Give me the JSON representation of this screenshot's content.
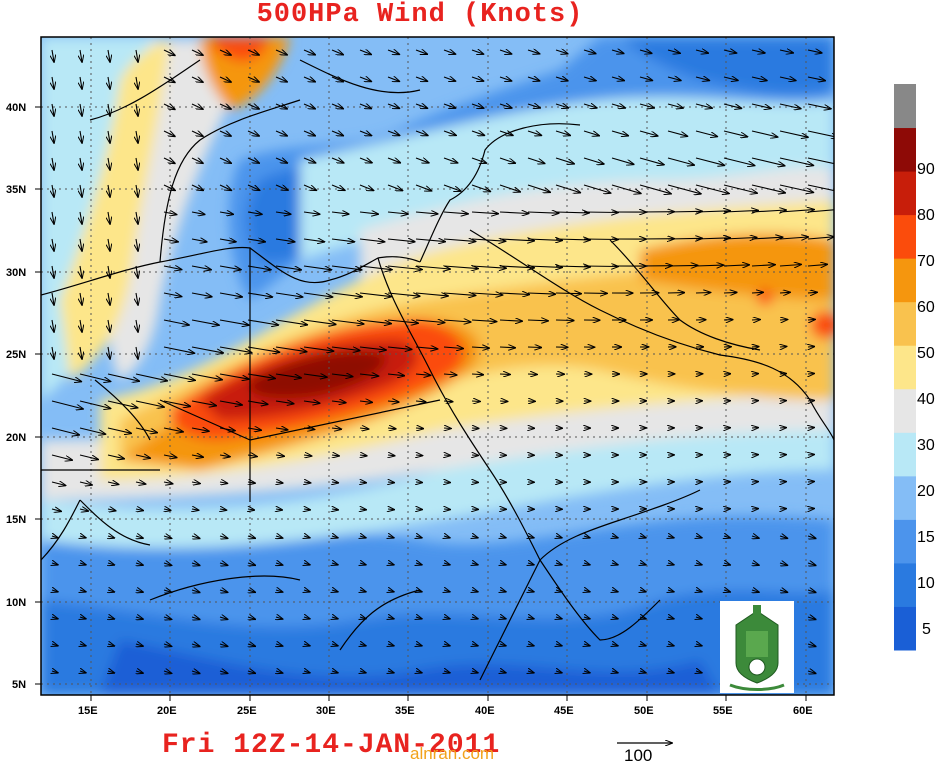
{
  "title": "500HPa Wind (Knots)",
  "date_label": "Fri 12Z-14-JAN-2011",
  "watermark": "alnran.com",
  "reference_vector_label": "100",
  "lat_labels": [
    "40N",
    "35N",
    "30N",
    "25N",
    "20N",
    "15N",
    "10N",
    "5N"
  ],
  "lon_labels": [
    "15E",
    "20E",
    "25E",
    "30E",
    "35E",
    "40E",
    "45E",
    "50E",
    "55E",
    "60E"
  ],
  "colorbar": {
    "levels": [
      "5",
      "10",
      "15",
      "20",
      "30",
      "40",
      "50",
      "60",
      "70",
      "80",
      "90"
    ],
    "colors": [
      "#1a5fd6",
      "#2a7ae0",
      "#4c94ec",
      "#84bdf6",
      "#b8e8f6",
      "#e6e6e6",
      "#fde68a",
      "#f9c24e",
      "#f5960e",
      "#fb4c0c",
      "#c81e0a",
      "#8e0a06",
      "#888888"
    ]
  },
  "colors": {
    "title": "#e8231f",
    "watermark": "#f2a21a"
  },
  "logo_icon": "university-emblem-icon"
}
